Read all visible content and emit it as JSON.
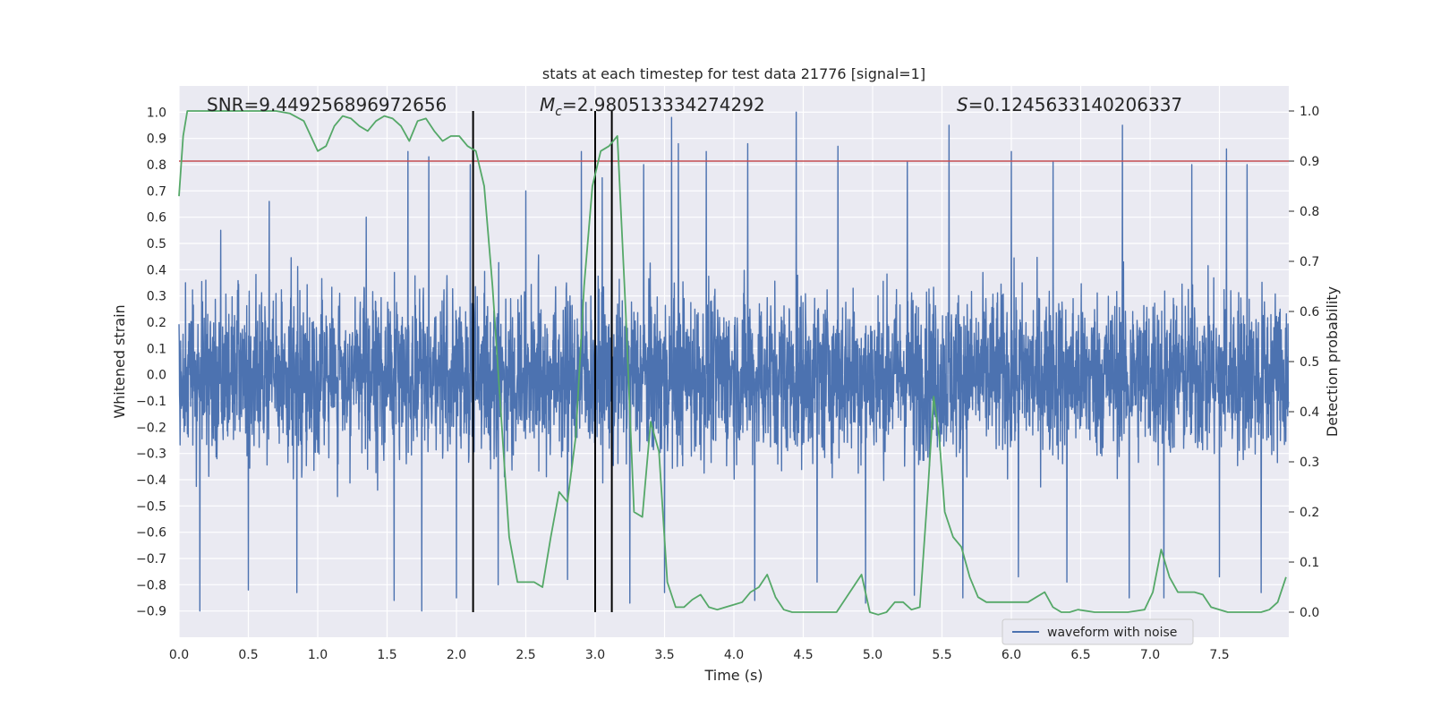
{
  "chart_data": {
    "type": "line",
    "title": "stats at each timestep for test data 21776 [signal=1]",
    "xlabel": "Time (s)",
    "ylabel": "Whitened strain",
    "y2label": "Detection probability",
    "xlim": [
      0.0,
      8.0
    ],
    "ylim": [
      -1.0,
      1.1
    ],
    "y2lim": [
      -0.05,
      1.05
    ],
    "xticks": [
      "0.0",
      "0.5",
      "1.0",
      "1.5",
      "2.0",
      "2.5",
      "3.0",
      "3.5",
      "4.0",
      "4.5",
      "5.0",
      "5.5",
      "6.0",
      "6.5",
      "7.0",
      "7.5"
    ],
    "yticks": [
      "1.0",
      "0.9",
      "0.8",
      "0.7",
      "0.6",
      "0.5",
      "0.4",
      "0.3",
      "0.2",
      "0.1",
      "0.0",
      "−0.1",
      "−0.2",
      "−0.3",
      "−0.4",
      "−0.5",
      "−0.6",
      "−0.7",
      "−0.8",
      "−0.9"
    ],
    "y2ticks": [
      "1.0",
      "0.9",
      "0.8",
      "0.7",
      "0.6",
      "0.5",
      "0.4",
      "0.3",
      "0.2",
      "0.1",
      "0.0"
    ],
    "grid": true,
    "legend": {
      "placement": "lower-right",
      "entries": [
        "waveform with noise"
      ]
    },
    "annotations": {
      "snr": "SNR=9.449256896972656",
      "mc_symbol": "M",
      "mc_sub": "c",
      "mc_value": "=2.980513334274292",
      "s_symbol": "S",
      "s_value": "=0.1245633140206337"
    },
    "threshold": {
      "y2": 0.9,
      "color": "#c44e52"
    },
    "vlines_x": [
      2.12,
      3.0,
      3.12
    ],
    "waveform": {
      "name": "waveform with noise",
      "color": "#4c72b0",
      "typical_amplitude": 0.33,
      "peak_times": [
        0.15,
        0.3,
        0.5,
        0.65,
        1.35,
        1.65,
        1.8,
        2.1,
        2.5,
        2.9,
        3.05,
        3.35,
        3.5,
        3.55,
        3.6,
        3.8,
        4.1,
        4.45,
        4.6,
        4.75,
        5.25,
        5.3,
        5.55,
        6.0,
        6.3,
        6.8,
        7.1,
        7.3,
        7.55,
        7.7
      ],
      "peak_values": [
        0.83,
        0.55,
        0.75,
        0.66,
        0.6,
        0.85,
        0.83,
        0.8,
        0.7,
        0.85,
        0.75,
        0.8,
        0.95,
        0.98,
        0.88,
        0.85,
        0.88,
        1.0,
        0.95,
        0.87,
        0.81,
        0.98,
        0.95,
        0.85,
        0.81,
        0.95,
        0.81,
        0.8,
        0.86,
        0.8
      ],
      "trough_times": [
        0.15,
        0.5,
        0.85,
        1.55,
        1.75,
        2.0,
        2.3,
        2.8,
        3.25,
        3.5,
        4.15,
        4.6,
        4.95,
        5.3,
        5.65,
        6.05,
        6.4,
        6.85,
        7.1,
        7.5,
        7.8
      ],
      "trough_values": [
        -0.9,
        -0.82,
        -0.83,
        -0.86,
        -0.9,
        -0.85,
        -0.8,
        -0.78,
        -0.87,
        -0.83,
        -0.86,
        -0.79,
        -0.87,
        -0.84,
        -0.85,
        -0.77,
        -0.79,
        -0.85,
        -0.85,
        -0.77,
        -0.83
      ]
    },
    "probability": {
      "color": "#55a868",
      "x": [
        0.0,
        0.03,
        0.06,
        0.12,
        0.2,
        0.3,
        0.5,
        0.7,
        0.8,
        0.9,
        0.95,
        1.0,
        1.06,
        1.12,
        1.18,
        1.24,
        1.3,
        1.36,
        1.42,
        1.48,
        1.54,
        1.6,
        1.66,
        1.72,
        1.78,
        1.84,
        1.9,
        1.96,
        2.02,
        2.08,
        2.14,
        2.2,
        2.26,
        2.32,
        2.38,
        2.44,
        2.5,
        2.56,
        2.62,
        2.68,
        2.74,
        2.8,
        2.86,
        2.92,
        2.98,
        3.04,
        3.1,
        3.16,
        3.22,
        3.28,
        3.34,
        3.4,
        3.46,
        3.52,
        3.58,
        3.64,
        3.7,
        3.76,
        3.82,
        3.88,
        3.94,
        4.0,
        4.06,
        4.12,
        4.18,
        4.24,
        4.3,
        4.36,
        4.42,
        4.48,
        4.6,
        4.74,
        4.8,
        4.86,
        4.92,
        4.98,
        5.04,
        5.1,
        5.16,
        5.22,
        5.28,
        5.34,
        5.4,
        5.44,
        5.48,
        5.52,
        5.58,
        5.64,
        5.7,
        5.76,
        5.82,
        5.88,
        6.0,
        6.06,
        6.12,
        6.18,
        6.24,
        6.3,
        6.36,
        6.42,
        6.48,
        6.6,
        6.72,
        6.84,
        6.96,
        7.02,
        7.08,
        7.14,
        7.2,
        7.26,
        7.32,
        7.38,
        7.44,
        7.56,
        7.68,
        7.8,
        7.86,
        7.92,
        7.98
      ],
      "y": [
        0.83,
        0.95,
        1.0,
        1.0,
        1.0,
        1.0,
        1.0,
        1.0,
        0.995,
        0.98,
        0.95,
        0.92,
        0.93,
        0.97,
        0.99,
        0.985,
        0.97,
        0.96,
        0.98,
        0.99,
        0.985,
        0.97,
        0.94,
        0.98,
        0.985,
        0.96,
        0.94,
        0.95,
        0.95,
        0.93,
        0.92,
        0.85,
        0.65,
        0.4,
        0.15,
        0.06,
        0.06,
        0.06,
        0.05,
        0.15,
        0.24,
        0.22,
        0.35,
        0.65,
        0.85,
        0.92,
        0.93,
        0.95,
        0.6,
        0.2,
        0.19,
        0.38,
        0.32,
        0.06,
        0.01,
        0.01,
        0.025,
        0.035,
        0.01,
        0.005,
        0.01,
        0.015,
        0.02,
        0.04,
        0.05,
        0.075,
        0.03,
        0.005,
        0.0,
        0.0,
        0.0,
        0.0,
        0.025,
        0.05,
        0.075,
        0.0,
        -0.005,
        0.0,
        0.02,
        0.02,
        0.005,
        0.01,
        0.25,
        0.43,
        0.35,
        0.2,
        0.15,
        0.13,
        0.07,
        0.03,
        0.02,
        0.02,
        0.02,
        0.02,
        0.02,
        0.03,
        0.04,
        0.01,
        0.0,
        0.0,
        0.005,
        0.0,
        0.0,
        0.0,
        0.005,
        0.04,
        0.125,
        0.07,
        0.04,
        0.04,
        0.04,
        0.035,
        0.01,
        0.0,
        0.0,
        0.0,
        0.005,
        0.02,
        0.07
      ]
    }
  }
}
